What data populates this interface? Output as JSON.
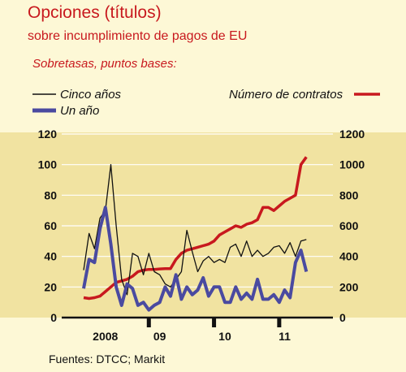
{
  "header": {
    "title": "Opciones (títulos)",
    "subtitle": "sobre incumplimiento de pagos de EU",
    "units": "Sobretasas, puntos bases:"
  },
  "legend": {
    "cinco": "Cinco años",
    "uno": "Un año",
    "contratos": "Número de contratos"
  },
  "source": "Fuentes: DTCC; Markit",
  "colors": {
    "background": "#fdf8d6",
    "plot_band": "#f1e3a1",
    "cinco": "#111111",
    "uno": "#4a4aa0",
    "contratos": "#c8191e"
  },
  "chart_data": {
    "type": "line",
    "x_tick_labels": [
      "2008",
      "09",
      "10",
      "11"
    ],
    "y_left": {
      "ticks": [
        0,
        20,
        40,
        60,
        80,
        100,
        120
      ],
      "ylim": [
        0,
        120
      ],
      "label": ""
    },
    "y_right": {
      "ticks": [
        0,
        200,
        400,
        600,
        800,
        1000,
        1200
      ],
      "ylim": [
        0,
        1200
      ],
      "label": ""
    },
    "x_domain": [
      "2008-01",
      "2011-07"
    ],
    "series": [
      {
        "name": "Cinco años",
        "axis": "left",
        "x": [
          "2008-01",
          "2008-02",
          "2008-03",
          "2008-04",
          "2008-05",
          "2008-06",
          "2008-07",
          "2008-08",
          "2008-09",
          "2008-10",
          "2008-11",
          "2008-12",
          "2009-01",
          "2009-02",
          "2009-03",
          "2009-04",
          "2009-05",
          "2009-06",
          "2009-07",
          "2009-08",
          "2009-09",
          "2009-10",
          "2009-11",
          "2009-12",
          "2010-01",
          "2010-02",
          "2010-03",
          "2010-04",
          "2010-05",
          "2010-06",
          "2010-07",
          "2010-08",
          "2010-09",
          "2010-10",
          "2010-11",
          "2010-12",
          "2011-01",
          "2011-02",
          "2011-03",
          "2011-04",
          "2011-05",
          "2011-06"
        ],
        "values": [
          31,
          55,
          45,
          65,
          70,
          100,
          60,
          25,
          15,
          42,
          40,
          28,
          42,
          30,
          28,
          22,
          20,
          25,
          30,
          57,
          43,
          30,
          37,
          40,
          36,
          38,
          36,
          46,
          48,
          40,
          50,
          40,
          44,
          40,
          42,
          46,
          47,
          42,
          49,
          40,
          50,
          51
        ]
      },
      {
        "name": "Un año",
        "axis": "left",
        "x": [
          "2008-01",
          "2008-02",
          "2008-03",
          "2008-04",
          "2008-05",
          "2008-06",
          "2008-07",
          "2008-08",
          "2008-09",
          "2008-10",
          "2008-11",
          "2008-12",
          "2009-01",
          "2009-02",
          "2009-03",
          "2009-04",
          "2009-05",
          "2009-06",
          "2009-07",
          "2009-08",
          "2009-09",
          "2009-10",
          "2009-11",
          "2009-12",
          "2010-01",
          "2010-02",
          "2010-03",
          "2010-04",
          "2010-05",
          "2010-06",
          "2010-07",
          "2010-08",
          "2010-09",
          "2010-10",
          "2010-11",
          "2010-12",
          "2011-01",
          "2011-02",
          "2011-03",
          "2011-04",
          "2011-05",
          "2011-06"
        ],
        "values": [
          19,
          38,
          36,
          58,
          72,
          48,
          20,
          8,
          22,
          19,
          8,
          10,
          5,
          8,
          10,
          20,
          14,
          28,
          12,
          20,
          15,
          18,
          26,
          14,
          20,
          20,
          10,
          10,
          20,
          12,
          16,
          12,
          25,
          12,
          12,
          15,
          10,
          18,
          13,
          36,
          44,
          30
        ]
      },
      {
        "name": "Número de contratos",
        "axis": "right",
        "x": [
          "2008-01",
          "2008-02",
          "2008-03",
          "2008-04",
          "2008-05",
          "2008-06",
          "2008-07",
          "2008-08",
          "2008-09",
          "2008-10",
          "2008-11",
          "2008-12",
          "2009-01",
          "2009-02",
          "2009-03",
          "2009-04",
          "2009-05",
          "2009-06",
          "2009-07",
          "2009-08",
          "2009-09",
          "2009-10",
          "2009-11",
          "2009-12",
          "2010-01",
          "2010-02",
          "2010-03",
          "2010-04",
          "2010-05",
          "2010-06",
          "2010-07",
          "2010-08",
          "2010-09",
          "2010-10",
          "2010-11",
          "2010-12",
          "2011-01",
          "2011-02",
          "2011-03",
          "2011-04",
          "2011-05",
          "2011-06"
        ],
        "values": [
          130,
          125,
          130,
          140,
          170,
          200,
          230,
          240,
          250,
          270,
          300,
          310,
          315,
          315,
          318,
          320,
          320,
          380,
          420,
          440,
          450,
          460,
          470,
          480,
          500,
          540,
          560,
          580,
          600,
          590,
          610,
          620,
          640,
          720,
          720,
          700,
          730,
          760,
          780,
          800,
          1000,
          1050
        ]
      }
    ]
  }
}
